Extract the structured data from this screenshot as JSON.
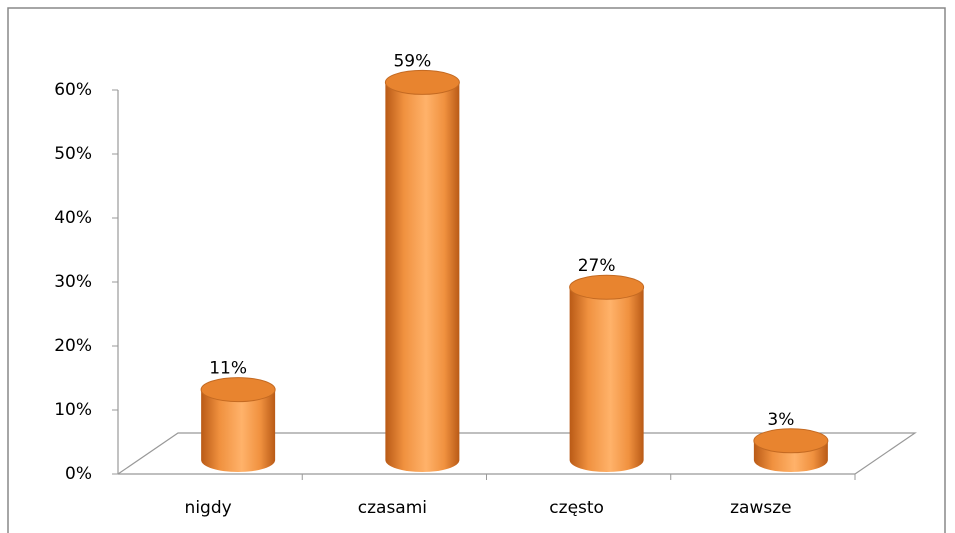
{
  "chart_data": {
    "type": "bar3d",
    "categories": [
      "nigdy",
      "czasami",
      "często",
      "zawsze"
    ],
    "values": [
      11,
      59,
      27,
      3
    ],
    "value_labels": [
      "11%",
      "59%",
      "27%",
      "3%"
    ],
    "color": "#f08c35",
    "ylim": [
      0,
      60
    ],
    "yticks": [
      {
        "value": 0,
        "label": "0%"
      },
      {
        "value": 10,
        "label": "10%"
      },
      {
        "value": 20,
        "label": "20%"
      },
      {
        "value": 30,
        "label": "30%"
      },
      {
        "value": 40,
        "label": "40%"
      },
      {
        "value": 50,
        "label": "50%"
      },
      {
        "value": 60,
        "label": "60%"
      }
    ]
  }
}
